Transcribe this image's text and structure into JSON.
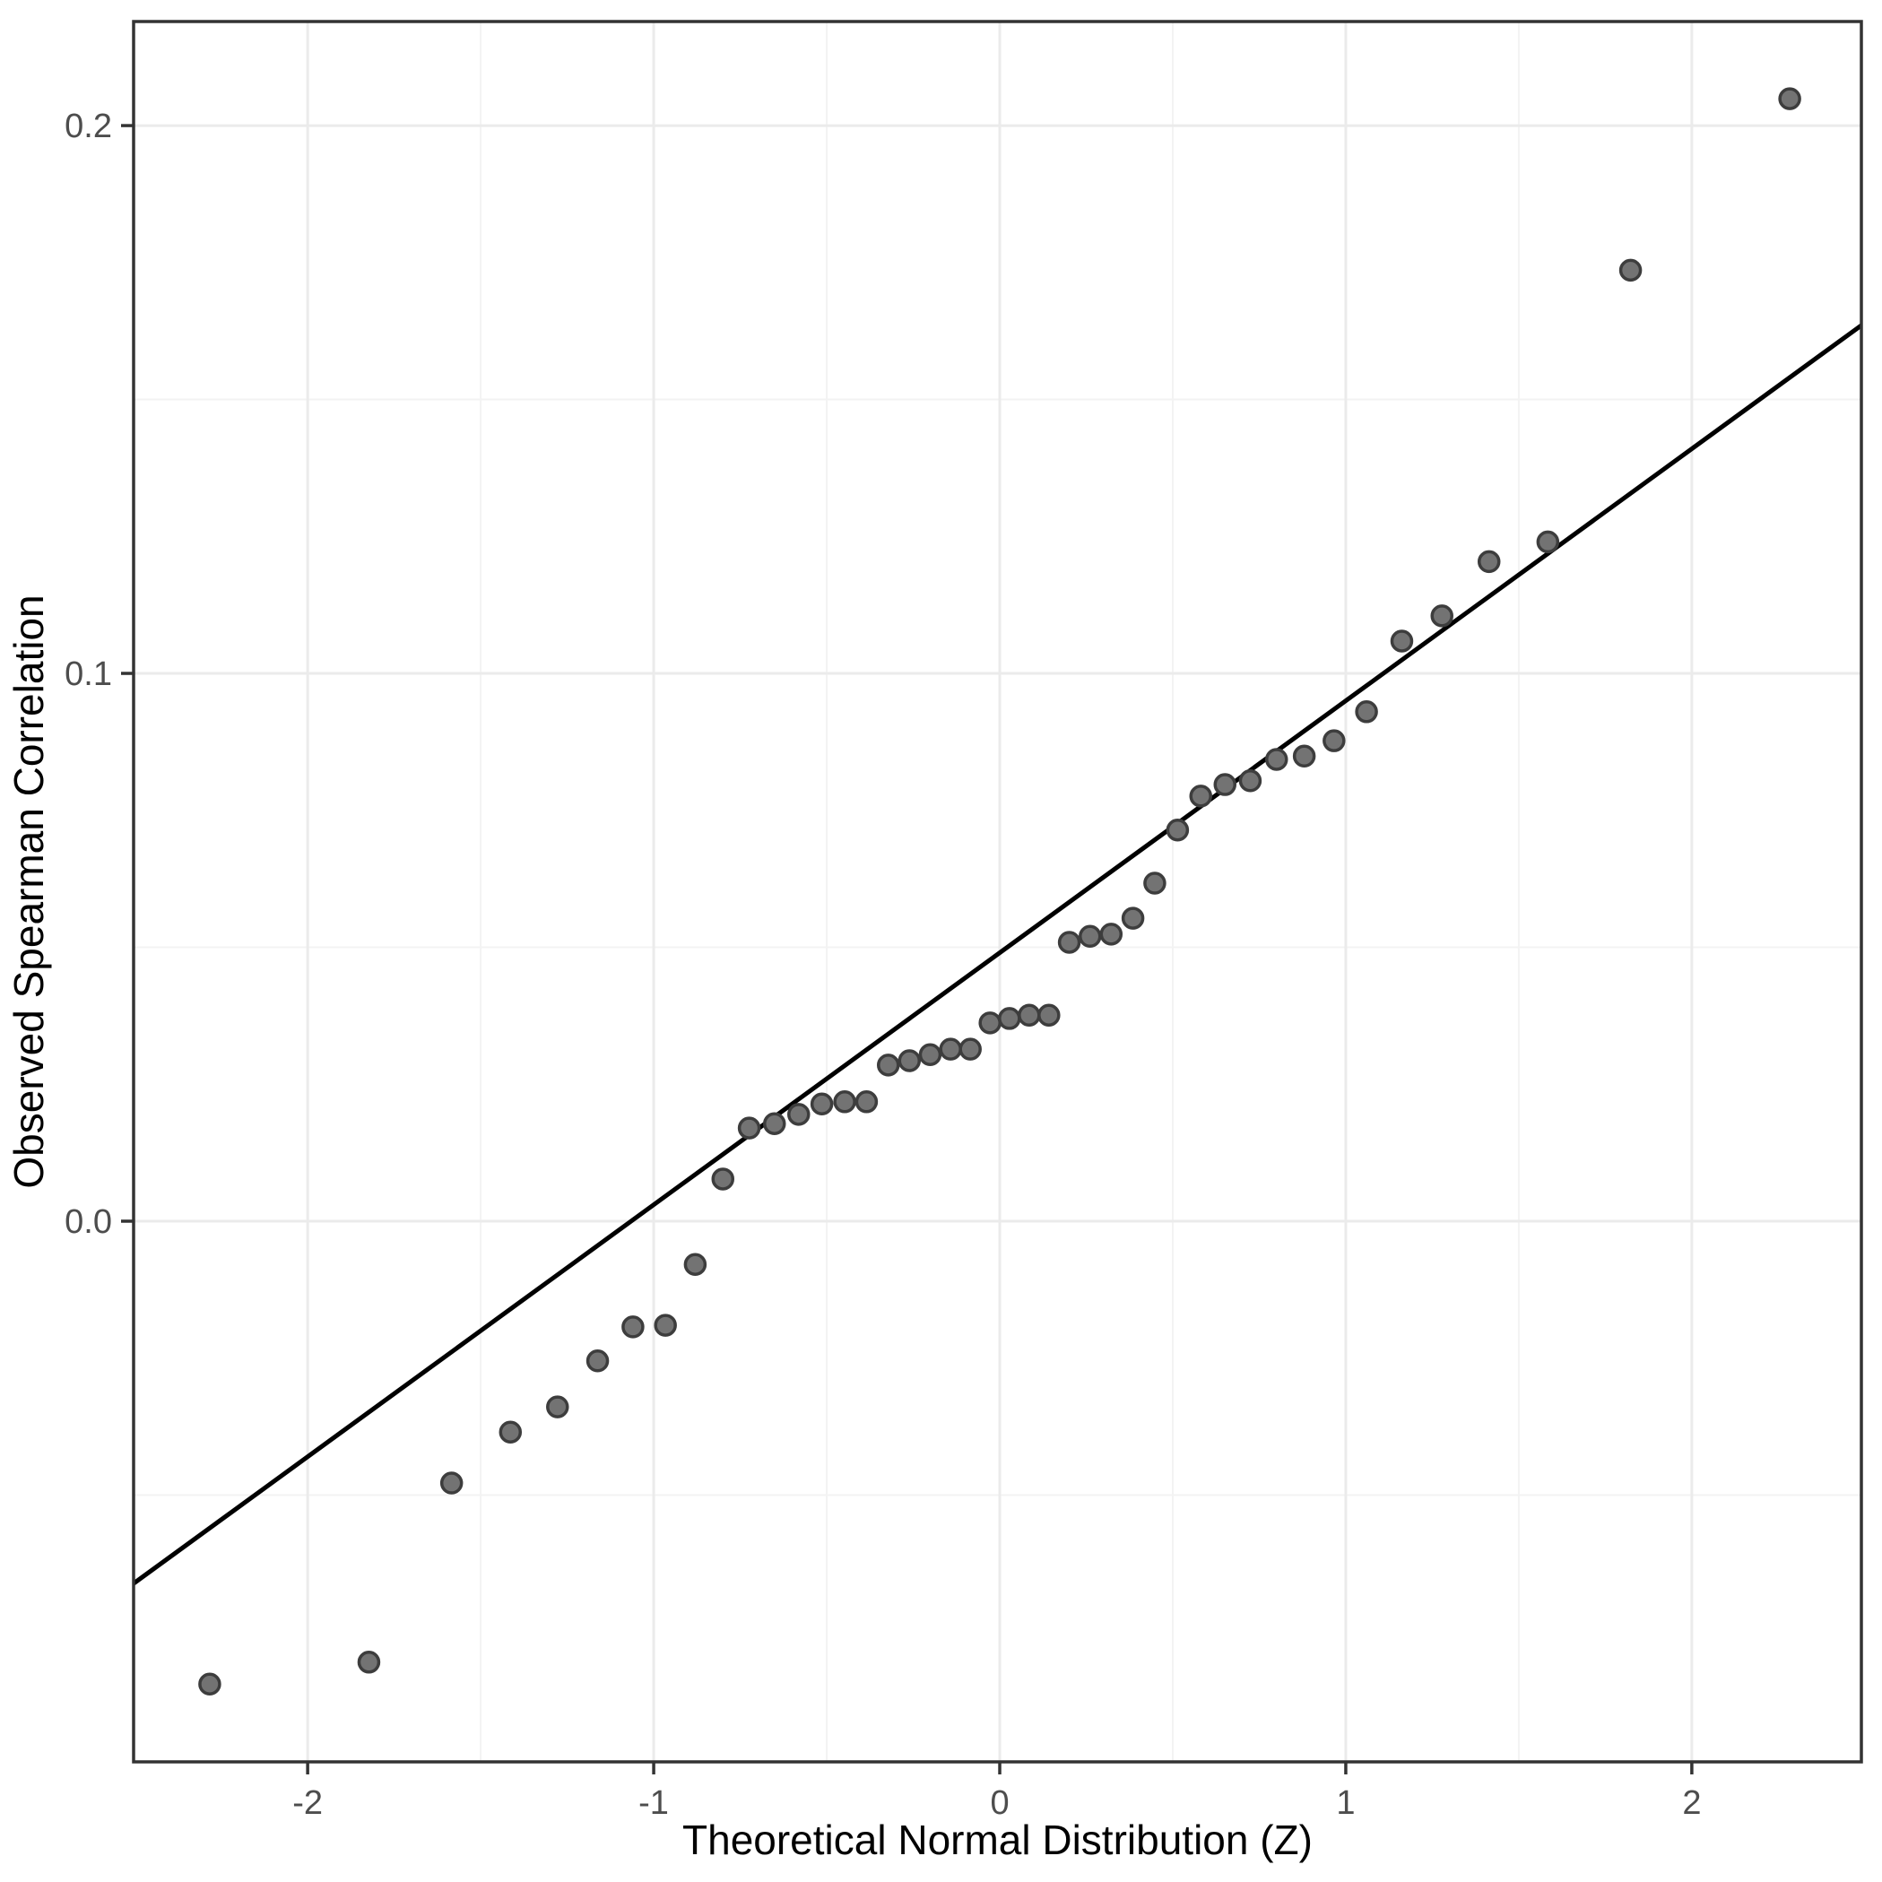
{
  "chart_data": {
    "type": "scatter",
    "title": "",
    "xlabel": "Theoretical Normal Distribution (Z)",
    "ylabel": "Observed Spearman Correlation",
    "xlim": [
      -2.503,
      2.49
    ],
    "ylim": [
      -0.0987,
      0.219
    ],
    "grid": true,
    "legend_position": "none",
    "x_ticks": {
      "major": [
        -2,
        -1,
        0,
        1,
        2
      ],
      "major_labels": [
        "-2",
        "-1",
        "0",
        "1",
        "2"
      ],
      "minor": [
        -1.5,
        -0.5,
        0.5,
        1.5
      ]
    },
    "y_ticks": {
      "major": [
        0.0,
        0.1,
        0.2
      ],
      "major_labels": [
        "0.0",
        "0.1",
        "0.2"
      ],
      "minor": [
        -0.05,
        0.05,
        0.15
      ]
    },
    "reference_line": {
      "slope": 0.046,
      "intercept": 0.049
    },
    "series": [
      {
        "name": "observed-spearman-quantiles",
        "points": [
          [
            -2.283,
            -0.0845
          ],
          [
            -1.823,
            -0.0805
          ],
          [
            -1.584,
            -0.0478
          ],
          [
            -1.414,
            -0.0385
          ],
          [
            -1.278,
            -0.0339
          ],
          [
            -1.162,
            -0.0255
          ],
          [
            -1.06,
            -0.0193
          ],
          [
            -0.966,
            -0.019
          ],
          [
            -0.88,
            -0.0079
          ],
          [
            -0.8,
            0.0077
          ],
          [
            -0.724,
            0.017
          ],
          [
            -0.651,
            0.0178
          ],
          [
            -0.581,
            0.0195
          ],
          [
            -0.514,
            0.0214
          ],
          [
            -0.448,
            0.0218
          ],
          [
            -0.385,
            0.0218
          ],
          [
            -0.322,
            0.0285
          ],
          [
            -0.261,
            0.0293
          ],
          [
            -0.201,
            0.0304
          ],
          [
            -0.142,
            0.0314
          ],
          [
            -0.085,
            0.0314
          ],
          [
            -0.028,
            0.0362
          ],
          [
            0.028,
            0.037
          ],
          [
            0.085,
            0.0376
          ],
          [
            0.142,
            0.0376
          ],
          [
            0.201,
            0.0509
          ],
          [
            0.261,
            0.052
          ],
          [
            0.322,
            0.0524
          ],
          [
            0.385,
            0.0553
          ],
          [
            0.448,
            0.0617
          ],
          [
            0.514,
            0.0714
          ],
          [
            0.581,
            0.0776
          ],
          [
            0.651,
            0.0797
          ],
          [
            0.724,
            0.0804
          ],
          [
            0.8,
            0.0843
          ],
          [
            0.88,
            0.0849
          ],
          [
            0.966,
            0.0877
          ],
          [
            1.06,
            0.093
          ],
          [
            1.162,
            0.1059
          ],
          [
            1.278,
            0.1105
          ],
          [
            1.414,
            0.1204
          ],
          [
            1.584,
            0.124
          ],
          [
            1.823,
            0.1736
          ],
          [
            2.283,
            0.2049
          ]
        ]
      }
    ],
    "style": {
      "point_fill": "#737373",
      "point_stroke": "#3d3d3d",
      "point_radius": 11,
      "point_stroke_width": 3.5,
      "line_color": "#000000",
      "line_width": 5,
      "grid_major_color": "#ebebeb",
      "grid_minor_color": "#f3f3f3",
      "panel_border_color": "#333333",
      "tick_mark_color": "#333333",
      "tick_label_color": "#4d4d4d",
      "background": "#ffffff"
    }
  }
}
